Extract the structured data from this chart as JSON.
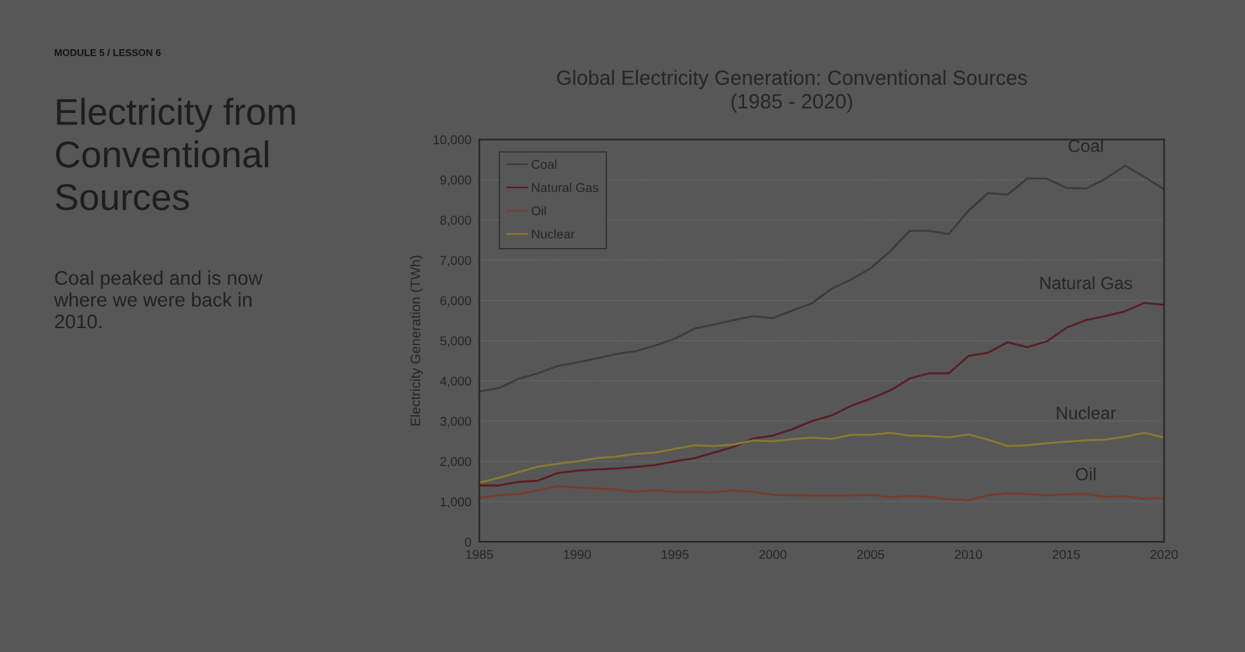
{
  "chart_data": {
    "type": "line",
    "title": "Global Electricity Generation: Conventional Sources\n(1985 - 2020)",
    "ylabel": "Electricity Generation (TWh)",
    "annotations": [
      "MODULE 5 / LESSON 6",
      "Electricity from\nConventional\nSources",
      "Coal peaked and is now\nwhere we were back in\n2010."
    ],
    "x": [
      1985,
      1986,
      1987,
      1988,
      1989,
      1990,
      1991,
      1992,
      1993,
      1994,
      1995,
      1996,
      1997,
      1998,
      1999,
      2000,
      2001,
      2002,
      2003,
      2004,
      2005,
      2006,
      2007,
      2008,
      2009,
      2010,
      2011,
      2012,
      2013,
      2014,
      2015,
      2016,
      2017,
      2018,
      2019,
      2020
    ],
    "series": [
      {
        "name": "Coal",
        "color": "#3c3c3c",
        "values": [
          3740,
          3820,
          4050,
          4190,
          4370,
          4460,
          4560,
          4670,
          4740,
          4880,
          5050,
          5300,
          5400,
          5510,
          5610,
          5560,
          5750,
          5930,
          6290,
          6520,
          6800,
          7220,
          7730,
          7730,
          7650,
          8230,
          8670,
          8630,
          9030,
          9030,
          8800,
          8780,
          9020,
          9350,
          9070,
          8760
        ]
      },
      {
        "name": "Natural Gas",
        "color": "#5c1c26",
        "values": [
          1400,
          1400,
          1490,
          1520,
          1710,
          1770,
          1800,
          1820,
          1860,
          1910,
          2000,
          2080,
          2220,
          2360,
          2570,
          2640,
          2800,
          3000,
          3140,
          3380,
          3560,
          3760,
          4060,
          4190,
          4190,
          4620,
          4700,
          4960,
          4840,
          4980,
          5320,
          5510,
          5610,
          5730,
          5940,
          5890
        ]
      },
      {
        "name": "Oil",
        "color": "#7a3c2a",
        "values": [
          1090,
          1160,
          1190,
          1280,
          1380,
          1350,
          1330,
          1300,
          1240,
          1280,
          1240,
          1240,
          1230,
          1280,
          1240,
          1170,
          1160,
          1150,
          1150,
          1150,
          1170,
          1110,
          1140,
          1120,
          1060,
          1030,
          1160,
          1210,
          1190,
          1160,
          1180,
          1190,
          1120,
          1130,
          1070,
          1100
        ]
      },
      {
        "name": "Nuclear",
        "color": "#8a7a32",
        "values": [
          1470,
          1590,
          1730,
          1870,
          1940,
          2000,
          2080,
          2120,
          2190,
          2220,
          2310,
          2400,
          2380,
          2420,
          2520,
          2500,
          2550,
          2590,
          2560,
          2660,
          2660,
          2710,
          2640,
          2630,
          2600,
          2670,
          2540,
          2380,
          2400,
          2450,
          2490,
          2520,
          2540,
          2610,
          2710,
          2590
        ]
      }
    ],
    "xlim": [
      1985,
      2020
    ],
    "xticks": [
      1985,
      1990,
      1995,
      2000,
      2005,
      2010,
      2015,
      2020
    ],
    "ylim": [
      0,
      10000
    ],
    "yticks": [
      {
        "value": 0,
        "label": "0"
      },
      {
        "value": 1000,
        "label": "1,000"
      },
      {
        "value": 2000,
        "label": "2,000"
      },
      {
        "value": 3000,
        "label": "3,000"
      },
      {
        "value": 4000,
        "label": "4,000"
      },
      {
        "value": 5000,
        "label": "5,000"
      },
      {
        "value": 6000,
        "label": "6,000"
      },
      {
        "value": 7000,
        "label": "7,000"
      },
      {
        "value": 8000,
        "label": "8,000"
      },
      {
        "value": 9000,
        "label": "9,000"
      },
      {
        "value": 10000,
        "label": "10,000"
      }
    ],
    "grid": "y",
    "legend": "top left",
    "marker": "none",
    "line_style": "solid"
  }
}
